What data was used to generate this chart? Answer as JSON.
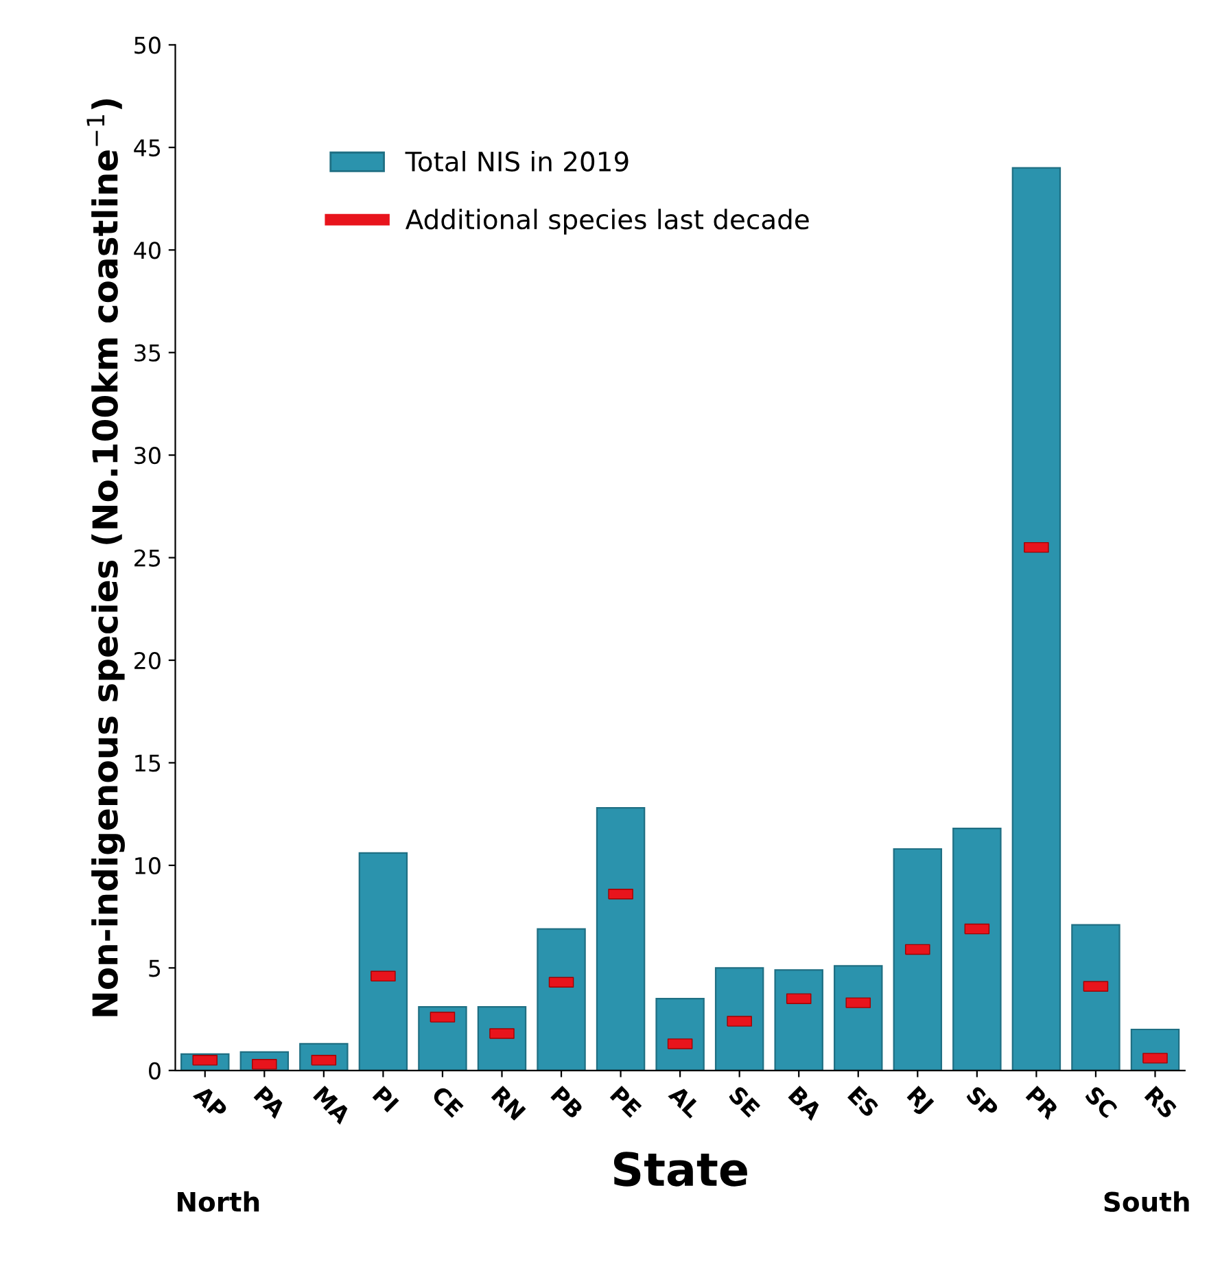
{
  "chart_data": {
    "type": "bar",
    "xlabel": "State",
    "ylabel": "Non-indigenous species (No.100km coastline$^{−1}$)",
    "categories": [
      "AP",
      "PA",
      "MA",
      "PI",
      "CE",
      "RN",
      "PB",
      "PE",
      "AL",
      "SE",
      "BA",
      "ES",
      "RJ",
      "SP",
      "PR",
      "SC",
      "RS"
    ],
    "series": [
      {
        "name": "Total NIS in 2019",
        "color": "#2b93ad",
        "values": [
          0.8,
          0.9,
          1.3,
          10.6,
          3.1,
          3.1,
          6.9,
          12.8,
          3.5,
          5.0,
          4.9,
          5.1,
          10.8,
          11.8,
          44.0,
          7.1,
          2.0
        ]
      },
      {
        "name": "Additional species last decade",
        "type": "scatter",
        "color": "#e8141c",
        "values": [
          0.5,
          0.3,
          0.5,
          4.6,
          2.6,
          1.8,
          4.3,
          8.6,
          1.3,
          2.4,
          3.5,
          3.3,
          5.9,
          6.9,
          25.5,
          4.1,
          0.6
        ]
      }
    ],
    "ylim": [
      0,
      50
    ],
    "yticks": [
      0,
      5,
      10,
      15,
      20,
      25,
      30,
      35,
      40,
      45,
      50
    ],
    "grid": false,
    "legend": "top left",
    "annotations": [
      "North",
      "South"
    ]
  }
}
